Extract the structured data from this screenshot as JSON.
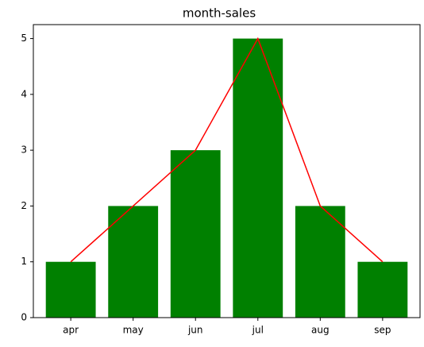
{
  "chart_data": [
    {
      "type": "bar",
      "title": "month-sales",
      "categories": [
        "apr",
        "may",
        "jun",
        "jul",
        "aug",
        "sep"
      ],
      "values": [
        1,
        2,
        3,
        5,
        2,
        1
      ],
      "color": "#008000",
      "ylim": [
        0,
        5.25
      ],
      "yticks": [
        0,
        1,
        2,
        3,
        4,
        5
      ]
    },
    {
      "type": "line",
      "categories": [
        "apr",
        "may",
        "jun",
        "jul",
        "aug",
        "sep"
      ],
      "values": [
        1,
        2,
        3,
        5,
        2,
        1
      ],
      "color": "#ff0000"
    }
  ]
}
